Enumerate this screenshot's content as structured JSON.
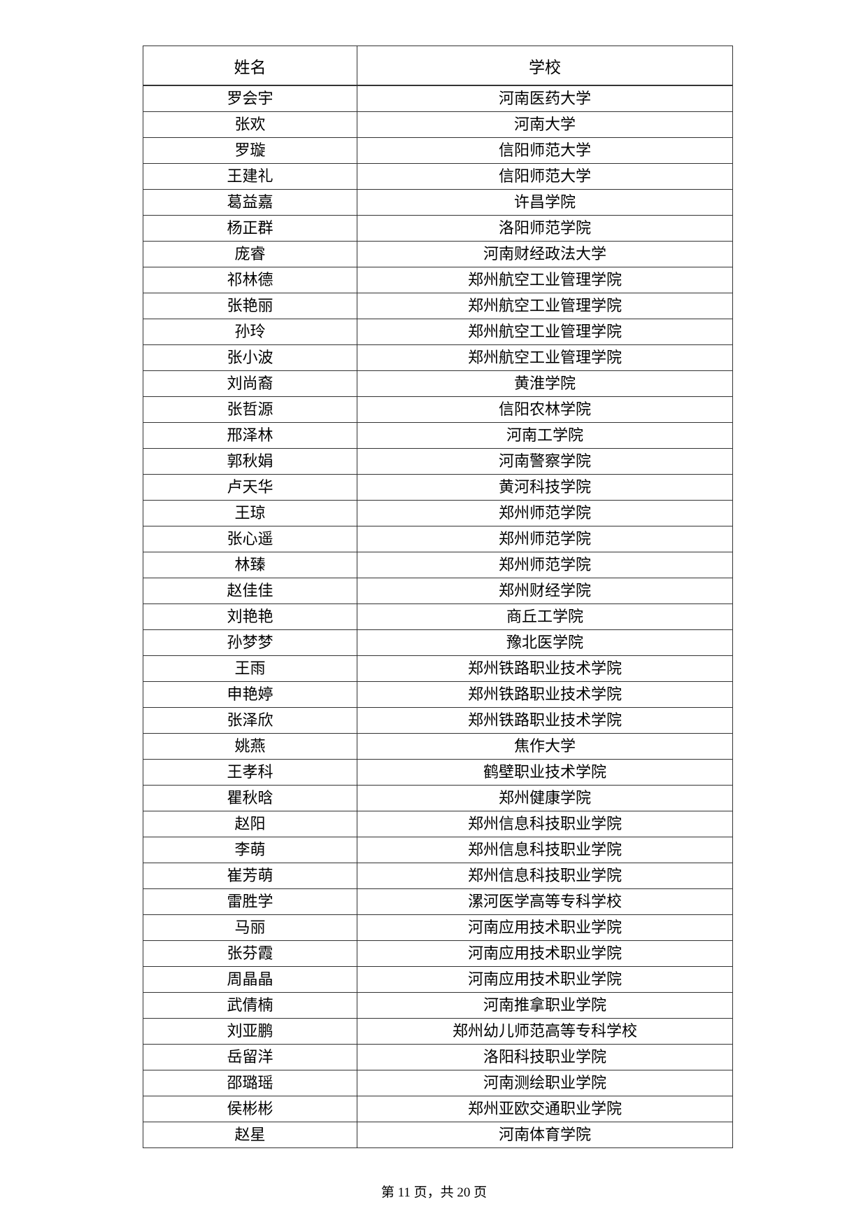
{
  "table": {
    "headers": {
      "name": "姓名",
      "school": "学校"
    },
    "rows": [
      {
        "name": "罗会宇",
        "school": "河南医药大学"
      },
      {
        "name": "张欢",
        "school": "河南大学"
      },
      {
        "name": "罗璇",
        "school": "信阳师范大学"
      },
      {
        "name": "王建礼",
        "school": "信阳师范大学"
      },
      {
        "name": "葛益嘉",
        "school": "许昌学院"
      },
      {
        "name": "杨正群",
        "school": "洛阳师范学院"
      },
      {
        "name": "庞睿",
        "school": "河南财经政法大学"
      },
      {
        "name": "祁林德",
        "school": "郑州航空工业管理学院"
      },
      {
        "name": "张艳丽",
        "school": "郑州航空工业管理学院"
      },
      {
        "name": "孙玲",
        "school": "郑州航空工业管理学院"
      },
      {
        "name": "张小波",
        "school": "郑州航空工业管理学院"
      },
      {
        "name": "刘尚裔",
        "school": "黄淮学院"
      },
      {
        "name": "张哲源",
        "school": "信阳农林学院"
      },
      {
        "name": "邢泽林",
        "school": "河南工学院"
      },
      {
        "name": "郭秋娟",
        "school": "河南警察学院"
      },
      {
        "name": "卢天华",
        "school": "黄河科技学院"
      },
      {
        "name": "王琼",
        "school": "郑州师范学院"
      },
      {
        "name": "张心遥",
        "school": "郑州师范学院"
      },
      {
        "name": "林臻",
        "school": "郑州师范学院"
      },
      {
        "name": "赵佳佳",
        "school": "郑州财经学院"
      },
      {
        "name": "刘艳艳",
        "school": "商丘工学院"
      },
      {
        "name": "孙梦梦",
        "school": "豫北医学院"
      },
      {
        "name": "王雨",
        "school": "郑州铁路职业技术学院"
      },
      {
        "name": "申艳婷",
        "school": "郑州铁路职业技术学院"
      },
      {
        "name": "张泽欣",
        "school": "郑州铁路职业技术学院"
      },
      {
        "name": "姚燕",
        "school": "焦作大学"
      },
      {
        "name": "王孝科",
        "school": "鹤壁职业技术学院"
      },
      {
        "name": "瞿秋晗",
        "school": "郑州健康学院"
      },
      {
        "name": "赵阳",
        "school": "郑州信息科技职业学院"
      },
      {
        "name": "李萌",
        "school": "郑州信息科技职业学院"
      },
      {
        "name": "崔芳萌",
        "school": "郑州信息科技职业学院"
      },
      {
        "name": "雷胜学",
        "school": "漯河医学高等专科学校"
      },
      {
        "name": "马丽",
        "school": "河南应用技术职业学院"
      },
      {
        "name": "张芬霞",
        "school": "河南应用技术职业学院"
      },
      {
        "name": "周晶晶",
        "school": "河南应用技术职业学院"
      },
      {
        "name": "武倩楠",
        "school": "河南推拿职业学院"
      },
      {
        "name": "刘亚鹏",
        "school": "郑州幼儿师范高等专科学校"
      },
      {
        "name": "岳留洋",
        "school": "洛阳科技职业学院"
      },
      {
        "name": "邵璐瑶",
        "school": "河南测绘职业学院"
      },
      {
        "name": "侯彬彬",
        "school": "郑州亚欧交通职业学院"
      },
      {
        "name": "赵星",
        "school": "河南体育学院"
      }
    ]
  },
  "footer": {
    "page_label": "第 11 页，共 20 页"
  }
}
